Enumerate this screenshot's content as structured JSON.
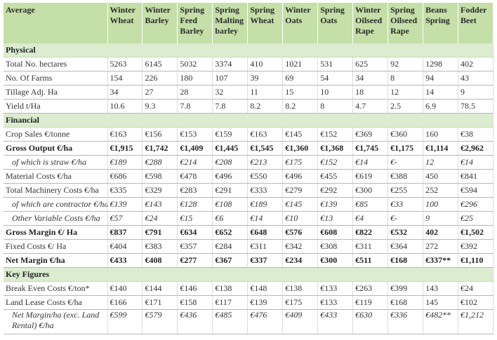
{
  "header": {
    "corner": "Average",
    "columns": [
      "Winter Wheat",
      "Winter Barley",
      "Spring Feed Barley",
      "Spring Malting barley",
      "Spring Wheat",
      "Winter Oats",
      "Spring Oats",
      "Winter Oilseed Rape",
      "Spring Oilseed Rape",
      "Beans Spring",
      "Fodder Beet"
    ]
  },
  "sections": [
    {
      "title": "Physical",
      "rows": [
        {
          "label": "Total No. hectares",
          "cells": [
            "5263",
            "6145",
            "5032",
            "3374",
            "410",
            "1021",
            "531",
            "625",
            "92",
            "1298",
            "402"
          ]
        },
        {
          "label": "No. Of Farms",
          "cells": [
            "154",
            "226",
            "180",
            "107",
            "39",
            "69",
            "54",
            "34",
            "8",
            "94",
            "43"
          ]
        },
        {
          "label": "Tillage Adj. Ha",
          "cells": [
            "34",
            "27",
            "28",
            "32",
            "11",
            "15",
            "10",
            "18",
            "12",
            "14",
            "9"
          ]
        },
        {
          "label": "Yield t/Ha",
          "cells": [
            "10.6",
            "9.3",
            "7.8",
            "7.8",
            "8.2",
            "8.2",
            "8",
            "4.7",
            "2.5",
            "6.9",
            "78.5"
          ]
        }
      ]
    },
    {
      "title": "Financial",
      "rows": [
        {
          "label": "Crop Sales €/tonne",
          "cells": [
            "€163",
            "€156",
            "€153",
            "€159",
            "€163",
            "€145",
            "€152",
            "€369",
            "€360",
            "160",
            "€38"
          ]
        },
        {
          "label": "Gross Output €/ha",
          "style": "bold",
          "cells": [
            "€1,915",
            "€1,742",
            "€1,409",
            "€1,445",
            "€1,545",
            "€1,360",
            "€1,368",
            "€1,745",
            "€1,175",
            "€1,114",
            "€2,962"
          ]
        },
        {
          "label": "of which is straw €/ha",
          "style": "italic",
          "cells": [
            "€189",
            "€288",
            "€214",
            "€208",
            "€213",
            "€175",
            "€152",
            "€14",
            "€-",
            "12",
            "€14"
          ]
        },
        {
          "label": "Material Costs €/ha",
          "cells": [
            "€686",
            "€598",
            "€478",
            "€496",
            "€550",
            "€496",
            "€455",
            "€619",
            "€388",
            "450",
            "€841"
          ]
        },
        {
          "label": "Total Machinery Costs €/ha",
          "cells": [
            "€335",
            "€329",
            "€283",
            "€291",
            "€333",
            "€279",
            "€292",
            "€300",
            "€255",
            "252",
            "€594"
          ]
        },
        {
          "label": "of which are contractor €/ha",
          "style": "italic",
          "cells": [
            "€139",
            "€143",
            "€128",
            "€108",
            "€189",
            "€145",
            "€139",
            "€85",
            "€33",
            "100",
            "€296"
          ]
        },
        {
          "label": "Other Variable Costs €/ha",
          "style": "italic",
          "cells": [
            "€57",
            "€24",
            "€15",
            "€6",
            "€14",
            "€10",
            "€13",
            "€4",
            "€-",
            "9",
            "€25"
          ]
        },
        {
          "label": "Gross Margin €/ Ha",
          "style": "bold",
          "cells": [
            "€837",
            "€791",
            "€634",
            "€652",
            "€648",
            "€576",
            "€608",
            "€822",
            "€532",
            "402",
            "€1,502"
          ]
        },
        {
          "label": "Fixed Costs €/ Ha",
          "cells": [
            "€404",
            "€383",
            "€357",
            "€284",
            "€311",
            "€342",
            "€308",
            "€311",
            "€364",
            "272",
            "€392"
          ]
        },
        {
          "label": "Net Margin €/ha",
          "style": "bold",
          "cells": [
            "€433",
            "€408",
            "€277",
            "€367",
            "€337",
            "€234",
            "€300",
            "€511",
            "€168",
            "€337**",
            "€1,110"
          ]
        }
      ]
    },
    {
      "title": "Key Figures",
      "rows": [
        {
          "label": "Break Even Costs €/ton*",
          "cells": [
            "€140",
            "€144",
            "€146",
            "€138",
            "€148",
            "€138",
            "€133",
            "€263",
            "€399",
            "143",
            "€24"
          ]
        },
        {
          "label": "Land Lease Costs €/ha",
          "cells": [
            "€166",
            "€171",
            "€158",
            "€117",
            "€139",
            "€175",
            "€133",
            "€119",
            "€168",
            "145",
            "€102"
          ]
        },
        {
          "label": "Net Margin/ha (exc. Land Rental) €/ha",
          "style": "italic",
          "cells": [
            "€599",
            "€579",
            "€436",
            "€485",
            "€476",
            "€409",
            "€433",
            "€630",
            "€336",
            "€482**",
            "€1,212"
          ]
        }
      ]
    }
  ]
}
